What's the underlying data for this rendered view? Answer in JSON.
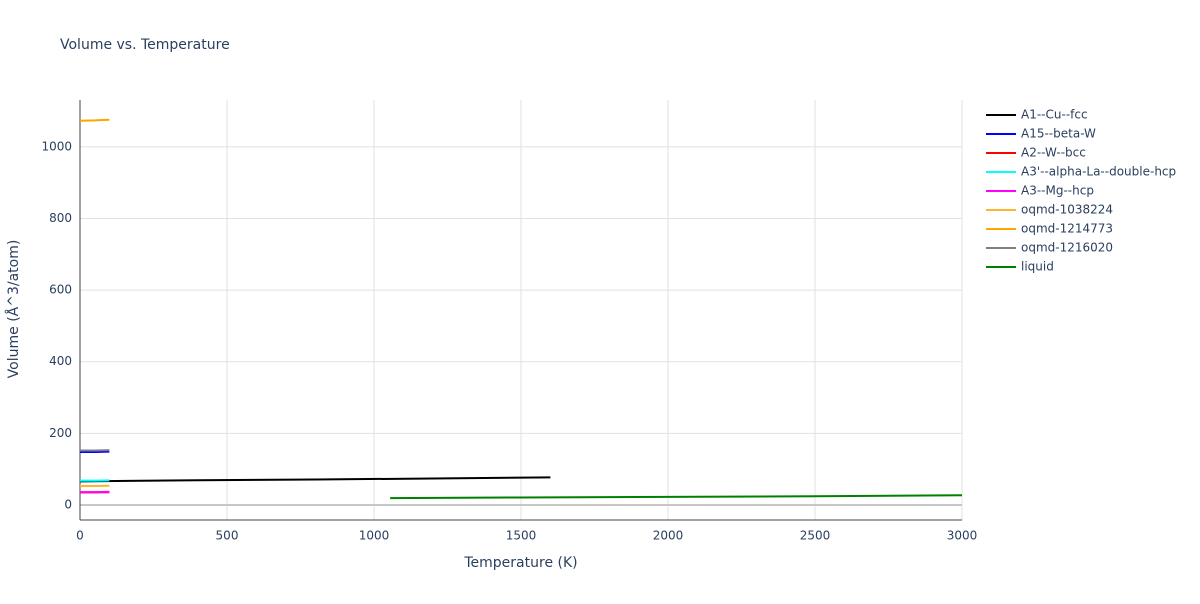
{
  "chart_data": {
    "type": "line",
    "title": "Volume vs. Temperature",
    "x_label": "Temperature (K)",
    "y_label": "Volume (Å^3/atom)",
    "xlim": [
      0,
      3000
    ],
    "xticks": [
      0,
      500,
      1000,
      1500,
      2000,
      2500,
      3000
    ],
    "ylim": [
      -42,
      1131
    ],
    "yticks": [
      0,
      200,
      400,
      600,
      800,
      1000
    ],
    "grid": true,
    "series": [
      {
        "name": "A1--Cu--fcc",
        "color": "#000000",
        "x": [
          0,
          400,
          800,
          1200,
          1600
        ],
        "values": [
          66,
          69,
          71,
          74,
          77
        ]
      },
      {
        "name": "A15--beta-W",
        "color": "#0000ff",
        "x": [
          0,
          50,
          100
        ],
        "values": [
          148,
          148,
          149
        ]
      },
      {
        "name": "A2--W--bcc",
        "color": "#ff0000",
        "x": [
          0,
          50,
          100
        ],
        "values": [
          35,
          35,
          35.5
        ]
      },
      {
        "name": "A3'--alpha-La--double-hcp",
        "color": "#00ffff",
        "x": [
          0,
          50,
          100
        ],
        "values": [
          68,
          68,
          68.5
        ]
      },
      {
        "name": "A3--Mg--hcp",
        "color": "#ff00ff",
        "x": [
          0,
          50,
          100
        ],
        "values": [
          36,
          36,
          36.5
        ]
      },
      {
        "name": "oqmd-1038224",
        "color": "#ffb52e",
        "x": [
          0,
          50,
          100
        ],
        "values": [
          53,
          53,
          53.5
        ]
      },
      {
        "name": "oqmd-1214773",
        "color": "#ffa500",
        "x": [
          0,
          50,
          100
        ],
        "values": [
          1073,
          1074,
          1076
        ]
      },
      {
        "name": "oqmd-1216020",
        "color": "#808080",
        "x": [
          0,
          50,
          100
        ],
        "values": [
          152,
          152,
          153
        ]
      },
      {
        "name": "liquid",
        "color": "#008000",
        "x": [
          1055,
          1500,
          2000,
          2500,
          3000
        ],
        "values": [
          19,
          21,
          22.5,
          24.5,
          27
        ]
      }
    ]
  }
}
